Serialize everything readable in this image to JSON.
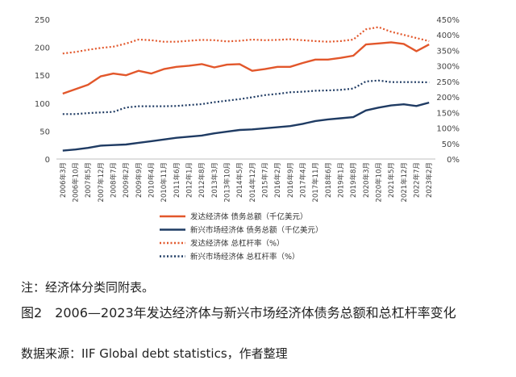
{
  "note": "注：经济体分类同附表。",
  "caption": "图2　2006—2023年发达经济体与新兴市场经济体债务总额和总杠杆率变化",
  "source": "数据来源：IIF Global debt statistics，作者整理",
  "chart_data": {
    "type": "line",
    "title": "",
    "xlabel": "",
    "ylabel_left": "",
    "ylabel_right": "",
    "ylim_left": [
      0,
      250
    ],
    "yticks_left": [
      "0",
      "50",
      "100",
      "150",
      "200",
      "250"
    ],
    "ylim_right": [
      0,
      450
    ],
    "yticks_right": [
      "0%",
      "50%",
      "100%",
      "150%",
      "200%",
      "250%",
      "300%",
      "350%",
      "400%",
      "450%"
    ],
    "x_labels": [
      "2006年3月",
      "2006年10月",
      "2007年5月",
      "2007年12月",
      "2008年7月",
      "2009年2月",
      "2009年9月",
      "2010年4月",
      "2010年11月",
      "2011年6月",
      "2012年1月",
      "2012年8月",
      "2013年3月",
      "2013年10月",
      "2014年5月",
      "2014年12月",
      "2015年7月",
      "2016年2月",
      "2016年9月",
      "2017年4月",
      "2017年11月",
      "2018年6月",
      "2019年1月",
      "2019年8月",
      "2020年3月",
      "2020年10月",
      "2021年5月",
      "2021年12月",
      "2022年7月",
      "2023年2月"
    ],
    "legend_position": "bottom",
    "series": [
      {
        "name": "发达经济体 债务总额（千亿美元）",
        "axis": "left",
        "style": "solid",
        "color": "#e2572b",
        "values": [
          117,
          125,
          133,
          148,
          153,
          150,
          158,
          153,
          161,
          165,
          167,
          170,
          164,
          169,
          170,
          158,
          161,
          165,
          165,
          172,
          178,
          178,
          181,
          185,
          205,
          207,
          209,
          206,
          193,
          205
        ]
      },
      {
        "name": "新兴市场经济体 债务总额（千亿美元）",
        "axis": "left",
        "style": "solid",
        "color": "#1f3b63",
        "values": [
          15,
          17,
          20,
          24,
          25,
          26,
          29,
          32,
          35,
          38,
          40,
          42,
          46,
          49,
          52,
          53,
          55,
          57,
          59,
          63,
          68,
          71,
          73,
          75,
          87,
          92,
          96,
          98,
          95,
          101
        ]
      },
      {
        "name": "发达经济体 总杠杆率（%）",
        "axis": "right",
        "style": "dotted",
        "color": "#e2572b",
        "values": [
          340,
          345,
          352,
          358,
          362,
          372,
          385,
          383,
          378,
          378,
          381,
          384,
          383,
          379,
          381,
          385,
          383,
          384,
          386,
          383,
          380,
          378,
          380,
          385,
          418,
          425,
          410,
          400,
          390,
          380
        ]
      },
      {
        "name": "新兴市场经济体 总杠杆率（%）",
        "axis": "right",
        "style": "dotted",
        "color": "#1f3b63",
        "values": [
          145,
          145,
          148,
          150,
          152,
          166,
          170,
          170,
          170,
          171,
          174,
          177,
          183,
          188,
          193,
          199,
          206,
          210,
          215,
          217,
          220,
          221,
          223,
          227,
          250,
          253,
          248,
          248,
          248,
          247
        ]
      }
    ],
    "legend_labels": [
      "发达经济体 债务总额（千亿美元）",
      "新兴市场经济体 债务总额（千亿美元）",
      "发达经济体 总杠杆率（%）",
      "新兴市场经济体 总杠杆率（%）"
    ]
  }
}
